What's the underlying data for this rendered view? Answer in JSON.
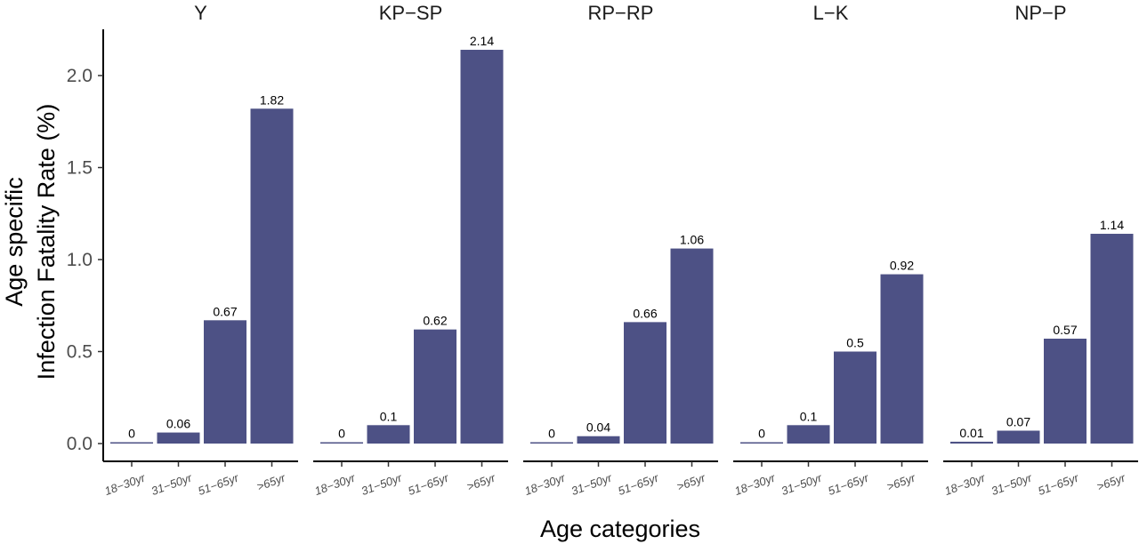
{
  "chart_data": {
    "type": "bar",
    "facet_by": "region",
    "categories": [
      "18−30yr",
      "31−50yr",
      "51−65yr",
      ">65yr"
    ],
    "panels": [
      {
        "title": "Y",
        "values": [
          0,
          0.06,
          0.67,
          1.82
        ],
        "labels": [
          "0",
          "0.06",
          "0.67",
          "1.82"
        ]
      },
      {
        "title": "KP−SP",
        "values": [
          0,
          0.1,
          0.62,
          2.14
        ],
        "labels": [
          "0",
          "0.1",
          "0.62",
          "2.14"
        ]
      },
      {
        "title": "RP−RP",
        "values": [
          0,
          0.04,
          0.66,
          1.06
        ],
        "labels": [
          "0",
          "0.04",
          "0.66",
          "1.06"
        ]
      },
      {
        "title": "L−K",
        "values": [
          0,
          0.1,
          0.5,
          0.92
        ],
        "labels": [
          "0",
          "0.1",
          "0.5",
          "0.92"
        ]
      },
      {
        "title": "NP−P",
        "values": [
          0.01,
          0.07,
          0.57,
          1.14
        ],
        "labels": [
          "0.01",
          "0.07",
          "0.57",
          "1.14"
        ]
      }
    ],
    "ylabel_lines": [
      "Age specific",
      "Infection Fatality Rate (%)"
    ],
    "xlabel": "Age categories",
    "ylim": [
      0,
      2.15
    ],
    "yticks": [
      0.0,
      0.5,
      1.0,
      1.5,
      2.0
    ],
    "ytick_labels": [
      "0.0",
      "0.5",
      "1.0",
      "1.5",
      "2.0"
    ],
    "bar_color": "#4d5185",
    "grid": false,
    "legend": "none"
  }
}
